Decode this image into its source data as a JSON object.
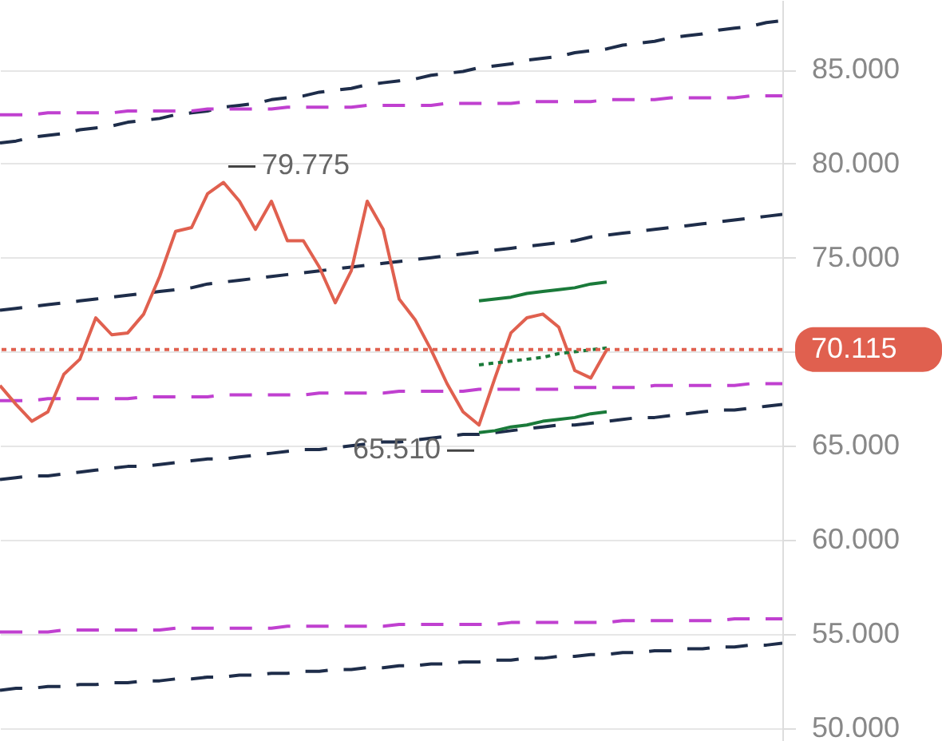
{
  "chart_data": {
    "type": "line",
    "ylim": [
      49.3,
      88.7
    ],
    "categories": [
      null,
      null,
      null,
      null,
      null,
      null,
      null,
      null,
      null,
      null,
      null,
      null,
      null,
      null,
      null,
      null,
      null,
      null,
      null,
      null,
      null,
      null,
      null,
      null,
      null,
      null,
      null,
      null,
      null,
      null,
      null,
      null,
      null,
      null,
      null,
      null,
      null,
      null,
      null,
      null,
      null,
      null,
      null,
      null,
      null,
      null,
      null,
      null,
      null,
      null
    ],
    "yticks": [
      {
        "value": 50,
        "label": "50.000"
      },
      {
        "value": 55,
        "label": "55.000"
      },
      {
        "value": 60,
        "label": "60.000"
      },
      {
        "value": 65,
        "label": "65.000"
      },
      {
        "value": 70,
        "label": null
      },
      {
        "value": 75,
        "label": "75.000"
      },
      {
        "value": 80,
        "label": "80.000"
      },
      {
        "value": 85,
        "label": "85.000"
      }
    ],
    "grid": "y",
    "marker": "none",
    "series": [
      {
        "color": "#1e2d4a",
        "line_style": "dashed",
        "values": [
          81.1,
          81.2,
          81.4,
          81.5,
          81.6,
          81.8,
          81.9,
          82.0,
          82.2,
          82.3,
          82.4,
          82.6,
          82.7,
          82.8,
          83.0,
          83.1,
          83.2,
          83.4,
          83.5,
          83.6,
          83.8,
          83.9,
          84.0,
          84.2,
          84.3,
          84.4,
          84.5,
          84.7,
          84.8,
          84.9,
          85.1,
          85.2,
          85.3,
          85.5,
          85.6,
          85.7,
          85.9,
          86.0,
          86.1,
          86.3,
          86.4,
          86.5,
          86.7,
          86.8,
          86.9,
          87.1,
          87.2,
          87.3,
          87.5,
          87.6
        ]
      },
      {
        "color": "#1e2d4a",
        "line_style": "dashed",
        "values": [
          72.2,
          72.3,
          72.4,
          72.5,
          72.6,
          72.7,
          72.8,
          72.9,
          73.0,
          73.1,
          73.2,
          73.3,
          73.4,
          73.6,
          73.7,
          73.8,
          73.9,
          74.0,
          74.1,
          74.2,
          74.3,
          74.4,
          74.5,
          74.6,
          74.7,
          74.8,
          74.9,
          75.0,
          75.1,
          75.2,
          75.3,
          75.4,
          75.5,
          75.6,
          75.7,
          75.8,
          75.9,
          76.1,
          76.2,
          76.3,
          76.4,
          76.5,
          76.6,
          76.7,
          76.8,
          76.9,
          77.0,
          77.1,
          77.2,
          77.3
        ]
      },
      {
        "color": "#1e2d4a",
        "line_style": "dashed",
        "values": [
          63.2,
          63.3,
          63.4,
          63.4,
          63.5,
          63.6,
          63.7,
          63.8,
          63.9,
          63.9,
          64.0,
          64.1,
          64.2,
          64.3,
          64.3,
          64.4,
          64.5,
          64.6,
          64.7,
          64.8,
          64.8,
          64.9,
          65.0,
          65.1,
          65.2,
          65.2,
          65.3,
          65.4,
          65.5,
          65.6,
          65.6,
          65.7,
          65.8,
          65.9,
          66.0,
          66.1,
          66.1,
          66.2,
          66.3,
          66.4,
          66.5,
          66.5,
          66.6,
          66.7,
          66.8,
          66.9,
          66.9,
          67.0,
          67.1,
          67.2
        ]
      },
      {
        "color": "#1e2d4a",
        "line_style": "dashed",
        "values": [
          52.0,
          52.1,
          52.1,
          52.2,
          52.2,
          52.3,
          52.3,
          52.4,
          52.4,
          52.5,
          52.5,
          52.6,
          52.6,
          52.7,
          52.7,
          52.8,
          52.8,
          52.9,
          52.9,
          53.0,
          53.0,
          53.1,
          53.1,
          53.2,
          53.2,
          53.3,
          53.3,
          53.4,
          53.4,
          53.5,
          53.5,
          53.6,
          53.6,
          53.7,
          53.7,
          53.8,
          53.8,
          53.9,
          53.9,
          54.0,
          54.0,
          54.1,
          54.1,
          54.2,
          54.2,
          54.3,
          54.3,
          54.4,
          54.4,
          54.5
        ]
      },
      {
        "color": "#c040d0",
        "line_style": "dashed",
        "values": [
          82.6,
          82.6,
          82.6,
          82.7,
          82.7,
          82.7,
          82.7,
          82.7,
          82.8,
          82.8,
          82.8,
          82.8,
          82.8,
          82.9,
          82.9,
          82.9,
          82.9,
          82.9,
          83.0,
          83.0,
          83.0,
          83.0,
          83.0,
          83.1,
          83.1,
          83.1,
          83.1,
          83.1,
          83.2,
          83.2,
          83.2,
          83.2,
          83.2,
          83.3,
          83.3,
          83.3,
          83.3,
          83.3,
          83.4,
          83.4,
          83.4,
          83.4,
          83.5,
          83.5,
          83.5,
          83.5,
          83.5,
          83.6,
          83.6,
          83.6
        ]
      },
      {
        "color": "#c040d0",
        "line_style": "dashed",
        "values": [
          67.4,
          67.4,
          67.4,
          67.5,
          67.5,
          67.5,
          67.5,
          67.5,
          67.5,
          67.6,
          67.6,
          67.6,
          67.6,
          67.6,
          67.7,
          67.7,
          67.7,
          67.7,
          67.7,
          67.7,
          67.8,
          67.8,
          67.8,
          67.8,
          67.8,
          67.9,
          67.9,
          67.9,
          67.9,
          67.9,
          68.0,
          68.0,
          68.0,
          68.0,
          68.0,
          68.0,
          68.1,
          68.1,
          68.1,
          68.1,
          68.1,
          68.2,
          68.2,
          68.2,
          68.2,
          68.2,
          68.2,
          68.3,
          68.3,
          68.3
        ]
      },
      {
        "color": "#c040d0",
        "line_style": "dashed",
        "values": [
          55.1,
          55.1,
          55.1,
          55.1,
          55.2,
          55.2,
          55.2,
          55.2,
          55.2,
          55.2,
          55.2,
          55.3,
          55.3,
          55.3,
          55.3,
          55.3,
          55.3,
          55.3,
          55.4,
          55.4,
          55.4,
          55.4,
          55.4,
          55.4,
          55.4,
          55.5,
          55.5,
          55.5,
          55.5,
          55.5,
          55.5,
          55.5,
          55.6,
          55.6,
          55.6,
          55.6,
          55.6,
          55.6,
          55.6,
          55.7,
          55.7,
          55.7,
          55.7,
          55.7,
          55.7,
          55.7,
          55.8,
          55.8,
          55.8,
          55.8
        ]
      },
      {
        "color": "#e0604f",
        "line_style": "solid",
        "values": [
          68.2,
          67.2,
          66.3,
          66.8,
          68.8,
          69.6,
          71.8,
          70.9,
          71.0,
          72.0,
          74.0,
          76.4,
          76.6,
          78.4,
          79.0,
          78.0,
          76.5,
          78.0,
          75.9,
          75.9,
          74.5,
          72.6,
          74.3,
          78.0,
          76.5,
          72.8,
          71.7,
          70.1,
          68.3,
          66.8,
          66.1,
          68.6,
          71.0,
          71.8,
          72.0,
          71.3,
          69.0,
          68.6,
          70.1,
          null,
          null,
          null,
          null,
          null,
          null,
          null,
          null,
          null,
          null,
          null
        ]
      },
      {
        "color": "#1a7a3a",
        "line_style": "solid",
        "values": [
          null,
          null,
          null,
          null,
          null,
          null,
          null,
          null,
          null,
          null,
          null,
          null,
          null,
          null,
          null,
          null,
          null,
          null,
          null,
          null,
          null,
          null,
          null,
          null,
          null,
          null,
          null,
          null,
          null,
          null,
          72.7,
          72.8,
          72.9,
          73.1,
          73.2,
          73.3,
          73.4,
          73.6,
          73.7,
          null,
          null,
          null,
          null,
          null,
          null,
          null,
          null,
          null,
          null,
          null
        ]
      },
      {
        "color": "#1a7a3a",
        "line_style": "solid",
        "values": [
          null,
          null,
          null,
          null,
          null,
          null,
          null,
          null,
          null,
          null,
          null,
          null,
          null,
          null,
          null,
          null,
          null,
          null,
          null,
          null,
          null,
          null,
          null,
          null,
          null,
          null,
          null,
          null,
          null,
          null,
          65.7,
          65.8,
          66.0,
          66.1,
          66.3,
          66.4,
          66.5,
          66.7,
          66.8,
          null,
          null,
          null,
          null,
          null,
          null,
          null,
          null,
          null,
          null,
          null
        ]
      },
      {
        "color": "#1a7a3a",
        "line_style": "dotted",
        "values": [
          null,
          null,
          null,
          null,
          null,
          null,
          null,
          null,
          null,
          null,
          null,
          null,
          null,
          null,
          null,
          null,
          null,
          null,
          null,
          null,
          null,
          null,
          null,
          null,
          null,
          null,
          null,
          null,
          null,
          null,
          69.3,
          69.4,
          69.5,
          69.6,
          69.7,
          69.9,
          70.0,
          70.1,
          70.2,
          null,
          null,
          null,
          null,
          null,
          null,
          null,
          null,
          null,
          null,
          null
        ]
      }
    ],
    "ref_lines": [
      {
        "axis": "y",
        "value": 70.115,
        "label": "70.115",
        "color": "#e0604f",
        "line_style": "dotted"
      }
    ],
    "annotations": [
      "79.775",
      "65.510"
    ]
  }
}
